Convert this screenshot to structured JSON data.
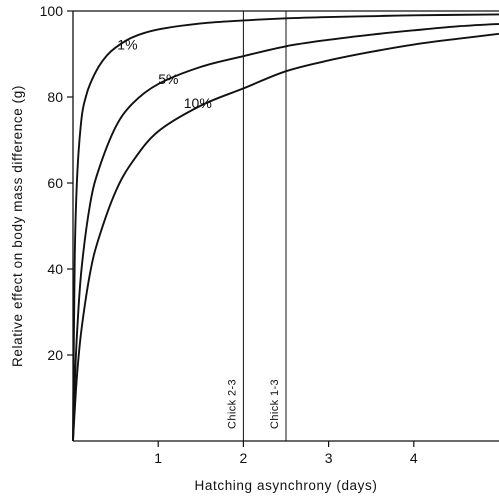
{
  "chart_data": {
    "type": "line",
    "xlabel": "Hatching asynchrony (days)",
    "ylabel": "Relative effect on body mass difference (g)",
    "xlim": [
      0,
      5
    ],
    "ylim": [
      0,
      100
    ],
    "x_ticks": [
      1,
      2,
      3,
      4
    ],
    "y_ticks": [
      20,
      40,
      60,
      80,
      100
    ],
    "grid": false,
    "series": [
      {
        "name": "1%",
        "x": [
          0,
          0.02,
          0.05,
          0.1,
          0.15,
          0.2,
          0.3,
          0.4,
          0.5,
          0.7,
          1.0,
          1.5,
          2.0,
          2.5,
          3.0,
          3.5,
          4.0,
          5.0
        ],
        "y": [
          0,
          42,
          62,
          75,
          80,
          83,
          87,
          89.7,
          91.5,
          93.9,
          95.7,
          97.1,
          97.8,
          98.3,
          98.6,
          98.8,
          99.0,
          99.2
        ]
      },
      {
        "name": "5%",
        "x": [
          0,
          0.02,
          0.05,
          0.1,
          0.2,
          0.3,
          0.5,
          0.7,
          1.0,
          1.5,
          2.0,
          2.5,
          3.0,
          3.5,
          4.0,
          4.5,
          5.0
        ],
        "y": [
          0,
          13,
          26,
          40,
          55,
          63,
          73,
          78.5,
          83,
          87,
          89.5,
          91.8,
          93.3,
          94.5,
          95.5,
          96.4,
          97
        ]
      },
      {
        "name": "10%",
        "x": [
          0,
          0.02,
          0.05,
          0.1,
          0.2,
          0.3,
          0.5,
          0.7,
          1.0,
          1.5,
          2.0,
          2.5,
          3.0,
          3.5,
          4.0,
          4.5,
          5.0
        ],
        "y": [
          0,
          7,
          16,
          26,
          39,
          47,
          58,
          65,
          72,
          78,
          82,
          86,
          88.5,
          90.5,
          92.2,
          93.5,
          94.7
        ]
      }
    ],
    "series_label_positions": [
      {
        "name": "1%",
        "x": 0.52,
        "y": 91
      },
      {
        "name": "5%",
        "x": 1.0,
        "y": 83
      },
      {
        "name": "10%",
        "x": 1.3,
        "y": 77.5
      }
    ],
    "reference_lines": [
      {
        "x": 2.0,
        "label": "Chick 2-3"
      },
      {
        "x": 2.5,
        "label": "Chick 1-3"
      }
    ]
  }
}
